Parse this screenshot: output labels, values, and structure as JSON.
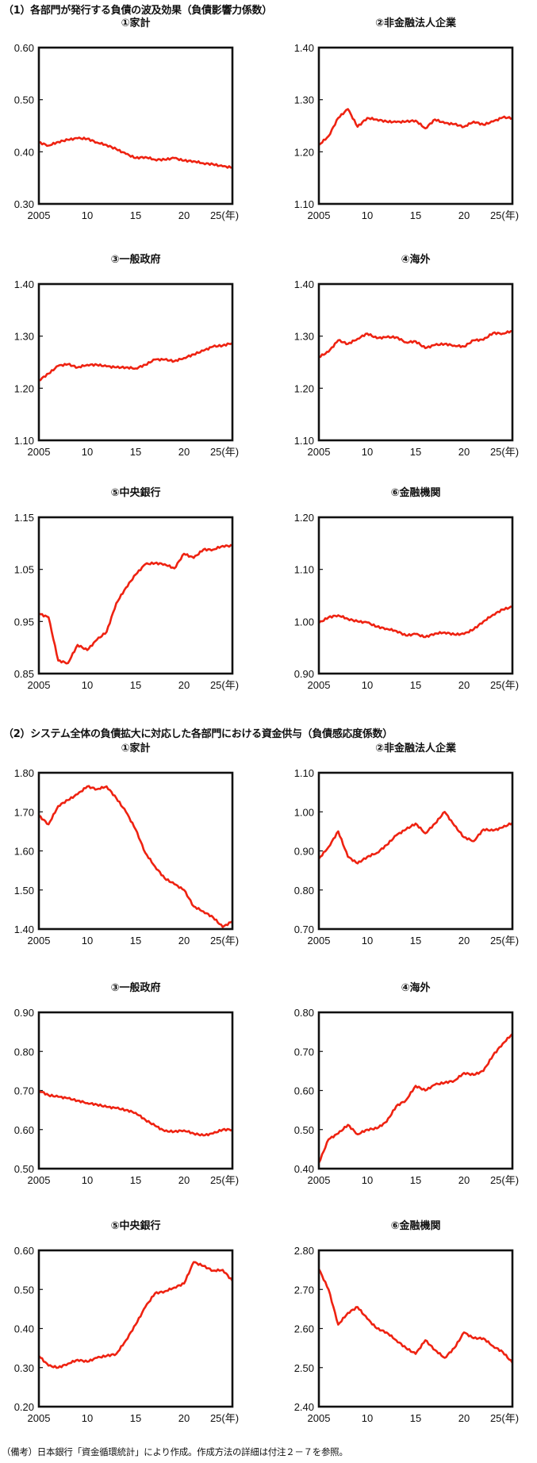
{
  "sections": [
    {
      "title": "（1）各部門が発行する負債の波及効果（負債影響力係数）"
    },
    {
      "title": "（2）システム全体の負債拡大に対応した各部門における資金供与（負債感応度係数）"
    }
  ],
  "note": "（備考）日本銀行「資金循環統計」により作成。作成方法の詳細は付注２－７を参照。",
  "line_color": "#ee2211",
  "x_ticks": [
    "2005",
    "10",
    "15",
    "20",
    "25(年)"
  ],
  "chart_data": [
    {
      "type": "line",
      "section": 1,
      "title": "①家計",
      "x": [
        2005,
        2006,
        2007,
        2008,
        2009,
        2010,
        2011,
        2012,
        2013,
        2014,
        2015,
        2016,
        2017,
        2018,
        2019,
        2020,
        2021,
        2022,
        2023,
        2024,
        2025
      ],
      "values": [
        0.418,
        0.412,
        0.419,
        0.423,
        0.426,
        0.425,
        0.418,
        0.413,
        0.405,
        0.396,
        0.388,
        0.39,
        0.385,
        0.385,
        0.388,
        0.383,
        0.382,
        0.378,
        0.376,
        0.372,
        0.37
      ],
      "yticks": [
        "0.60",
        "0.50",
        "0.40",
        "0.30"
      ],
      "ylim": [
        0.3,
        0.6
      ],
      "xlabel": "(年)"
    },
    {
      "type": "line",
      "section": 1,
      "title": "②非金融法人企業",
      "x": [
        2005,
        2006,
        2007,
        2008,
        2009,
        2010,
        2011,
        2012,
        2013,
        2014,
        2015,
        2016,
        2017,
        2018,
        2019,
        2020,
        2021,
        2022,
        2023,
        2024,
        2025
      ],
      "values": [
        1.213,
        1.23,
        1.265,
        1.282,
        1.248,
        1.265,
        1.262,
        1.258,
        1.257,
        1.258,
        1.26,
        1.245,
        1.262,
        1.255,
        1.253,
        1.248,
        1.258,
        1.252,
        1.258,
        1.266,
        1.265
      ],
      "yticks": [
        "1.40",
        "1.30",
        "1.20",
        "1.10"
      ],
      "ylim": [
        1.1,
        1.4
      ],
      "xlabel": "(年)"
    },
    {
      "type": "line",
      "section": 1,
      "title": "③一般政府",
      "x": [
        2005,
        2006,
        2007,
        2008,
        2009,
        2010,
        2011,
        2012,
        2013,
        2014,
        2015,
        2016,
        2017,
        2018,
        2019,
        2020,
        2021,
        2022,
        2023,
        2024,
        2025
      ],
      "values": [
        1.215,
        1.228,
        1.243,
        1.246,
        1.24,
        1.245,
        1.245,
        1.242,
        1.24,
        1.24,
        1.238,
        1.245,
        1.255,
        1.255,
        1.252,
        1.258,
        1.265,
        1.272,
        1.28,
        1.282,
        1.287
      ],
      "yticks": [
        "1.40",
        "1.30",
        "1.20",
        "1.10"
      ],
      "ylim": [
        1.1,
        1.4
      ],
      "xlabel": "(年)"
    },
    {
      "type": "line",
      "section": 1,
      "title": "④海外",
      "x": [
        2005,
        2006,
        2007,
        2008,
        2009,
        2010,
        2011,
        2012,
        2013,
        2014,
        2015,
        2016,
        2017,
        2018,
        2019,
        2020,
        2021,
        2022,
        2023,
        2024,
        2025
      ],
      "values": [
        1.26,
        1.27,
        1.292,
        1.285,
        1.295,
        1.305,
        1.296,
        1.298,
        1.298,
        1.288,
        1.29,
        1.277,
        1.283,
        1.285,
        1.282,
        1.28,
        1.292,
        1.293,
        1.306,
        1.305,
        1.31
      ],
      "yticks": [
        "1.40",
        "1.30",
        "1.20",
        "1.10"
      ],
      "ylim": [
        1.1,
        1.4
      ],
      "xlabel": "(年)"
    },
    {
      "type": "line",
      "section": 1,
      "title": "⑤中央銀行",
      "x": [
        2005,
        2006,
        2007,
        2008,
        2009,
        2010,
        2011,
        2012,
        2013,
        2014,
        2015,
        2016,
        2017,
        2018,
        2019,
        2020,
        2021,
        2022,
        2023,
        2024,
        2025
      ],
      "values": [
        0.965,
        0.958,
        0.875,
        0.87,
        0.905,
        0.895,
        0.915,
        0.93,
        0.985,
        1.015,
        1.04,
        1.06,
        1.062,
        1.06,
        1.052,
        1.08,
        1.072,
        1.088,
        1.088,
        1.095,
        1.095
      ],
      "yticks": [
        "1.15",
        "1.05",
        "0.95",
        "0.85"
      ],
      "ylim": [
        0.85,
        1.15
      ],
      "xlabel": "(年)"
    },
    {
      "type": "line",
      "section": 1,
      "title": "⑥金融機関",
      "x": [
        2005,
        2006,
        2007,
        2008,
        2009,
        2010,
        2011,
        2012,
        2013,
        2014,
        2015,
        2016,
        2017,
        2018,
        2019,
        2020,
        2021,
        2022,
        2023,
        2024,
        2025
      ],
      "values": [
        0.997,
        1.008,
        1.012,
        1.005,
        1.0,
        0.998,
        0.99,
        0.986,
        0.982,
        0.973,
        0.976,
        0.97,
        0.977,
        0.979,
        0.975,
        0.976,
        0.985,
        1.0,
        1.013,
        1.023,
        1.028
      ],
      "yticks": [
        "1.20",
        "1.10",
        "1.00",
        "0.90"
      ],
      "ylim": [
        0.9,
        1.2
      ],
      "xlabel": "(年)"
    },
    {
      "type": "line",
      "section": 2,
      "title": "①家計",
      "x": [
        2005,
        2006,
        2007,
        2008,
        2009,
        2010,
        2011,
        2012,
        2013,
        2014,
        2015,
        2016,
        2017,
        2018,
        2019,
        2020,
        2021,
        2022,
        2023,
        2024,
        2025
      ],
      "values": [
        1.69,
        1.668,
        1.715,
        1.73,
        1.745,
        1.765,
        1.758,
        1.765,
        1.735,
        1.7,
        1.655,
        1.595,
        1.56,
        1.53,
        1.515,
        1.5,
        1.458,
        1.445,
        1.43,
        1.405,
        1.42
      ],
      "yticks": [
        "1.80",
        "1.70",
        "1.60",
        "1.50",
        "1.40"
      ],
      "ylim": [
        1.4,
        1.8
      ],
      "xlabel": "(年)"
    },
    {
      "type": "line",
      "section": 2,
      "title": "②非金融法人企業",
      "x": [
        2005,
        2006,
        2007,
        2008,
        2009,
        2010,
        2011,
        2012,
        2013,
        2014,
        2015,
        2016,
        2017,
        2018,
        2019,
        2020,
        2021,
        2022,
        2023,
        2024,
        2025
      ],
      "values": [
        0.88,
        0.91,
        0.95,
        0.885,
        0.868,
        0.885,
        0.895,
        0.915,
        0.94,
        0.955,
        0.97,
        0.945,
        0.97,
        1.0,
        0.965,
        0.935,
        0.925,
        0.955,
        0.952,
        0.96,
        0.972
      ],
      "yticks": [
        "1.10",
        "1.00",
        "0.90",
        "0.80",
        "0.70"
      ],
      "ylim": [
        0.7,
        1.1
      ],
      "xlabel": "(年)"
    },
    {
      "type": "line",
      "section": 2,
      "title": "③一般政府",
      "x": [
        2005,
        2006,
        2007,
        2008,
        2009,
        2010,
        2011,
        2012,
        2013,
        2014,
        2015,
        2016,
        2017,
        2018,
        2019,
        2020,
        2021,
        2022,
        2023,
        2024,
        2025
      ],
      "values": [
        0.7,
        0.688,
        0.684,
        0.68,
        0.674,
        0.668,
        0.664,
        0.658,
        0.655,
        0.65,
        0.643,
        0.625,
        0.61,
        0.596,
        0.595,
        0.598,
        0.59,
        0.585,
        0.59,
        0.6,
        0.6
      ],
      "yticks": [
        "0.90",
        "0.80",
        "0.70",
        "0.60",
        "0.50"
      ],
      "ylim": [
        0.5,
        0.9
      ],
      "xlabel": "(年)"
    },
    {
      "type": "line",
      "section": 2,
      "title": "④海外",
      "x": [
        2005,
        2006,
        2007,
        2008,
        2009,
        2010,
        2011,
        2012,
        2013,
        2014,
        2015,
        2016,
        2017,
        2018,
        2019,
        2020,
        2021,
        2022,
        2023,
        2024,
        2025
      ],
      "values": [
        0.415,
        0.475,
        0.49,
        0.512,
        0.488,
        0.5,
        0.503,
        0.52,
        0.56,
        0.575,
        0.612,
        0.6,
        0.615,
        0.62,
        0.625,
        0.645,
        0.64,
        0.65,
        0.69,
        0.72,
        0.745
      ],
      "yticks": [
        "0.80",
        "0.70",
        "0.60",
        "0.50",
        "0.40"
      ],
      "ylim": [
        0.4,
        0.8
      ],
      "xlabel": "(年)"
    },
    {
      "type": "line",
      "section": 2,
      "title": "⑤中央銀行",
      "x": [
        2005,
        2006,
        2007,
        2008,
        2009,
        2010,
        2011,
        2012,
        2013,
        2014,
        2015,
        2016,
        2017,
        2018,
        2019,
        2020,
        2021,
        2022,
        2023,
        2024,
        2025
      ],
      "values": [
        0.33,
        0.305,
        0.3,
        0.31,
        0.32,
        0.315,
        0.325,
        0.33,
        0.335,
        0.37,
        0.41,
        0.455,
        0.49,
        0.495,
        0.505,
        0.515,
        0.57,
        0.56,
        0.548,
        0.55,
        0.522
      ],
      "yticks": [
        "0.60",
        "0.50",
        "0.40",
        "0.30",
        "0.20"
      ],
      "ylim": [
        0.2,
        0.6
      ],
      "xlabel": "(年)"
    },
    {
      "type": "line",
      "section": 2,
      "title": "⑥金融機関",
      "x": [
        2005,
        2006,
        2007,
        2008,
        2009,
        2010,
        2011,
        2012,
        2013,
        2014,
        2015,
        2016,
        2017,
        2018,
        2019,
        2020,
        2021,
        2022,
        2023,
        2024,
        2025
      ],
      "values": [
        2.752,
        2.7,
        2.61,
        2.64,
        2.655,
        2.625,
        2.6,
        2.59,
        2.57,
        2.55,
        2.535,
        2.57,
        2.545,
        2.525,
        2.55,
        2.59,
        2.575,
        2.575,
        2.555,
        2.54,
        2.512
      ],
      "yticks": [
        "2.80",
        "2.70",
        "2.60",
        "2.50",
        "2.40"
      ],
      "ylim": [
        2.4,
        2.8
      ],
      "xlabel": "(年)"
    }
  ]
}
